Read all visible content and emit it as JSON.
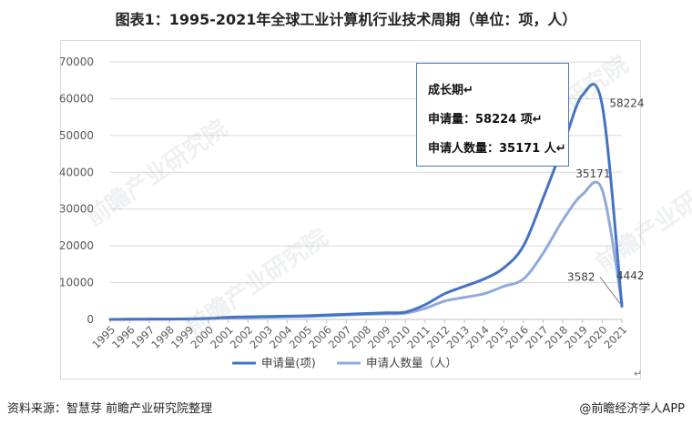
{
  "title": "图表1：1995-2021年全球工业计算机行业技术周期（单位：项，人）",
  "watermark_text": "前瞻产业研究院",
  "callout": {
    "line1": "成长期↵",
    "line2": "申请量：58224 项↵",
    "line3": "申请人数量：35171 人↵"
  },
  "footer": {
    "source": "资料来源：智慧芽 前瞻产业研究院整理",
    "brand": "@前瞻经济学人APP"
  },
  "para_mark": "↵",
  "colors": {
    "series1": "#4472c4",
    "series2": "#8faadc",
    "grid": "#d9d9d9",
    "axis_text": "#595959"
  },
  "chart_data": {
    "type": "line",
    "title": "图表1：1995-2021年全球工业计算机行业技术周期（单位：项，人）",
    "categories": [
      "1995",
      "1996",
      "1997",
      "1998",
      "1999",
      "2000",
      "2001",
      "2002",
      "2003",
      "2004",
      "2005",
      "2006",
      "2007",
      "2008",
      "2009",
      "2010",
      "2011",
      "2012",
      "2013",
      "2014",
      "2015",
      "2016",
      "2017",
      "2018",
      "2019",
      "2020",
      "2021"
    ],
    "series": [
      {
        "name": "申请量(项)",
        "values": [
          0,
          50,
          80,
          100,
          150,
          300,
          600,
          700,
          800,
          900,
          1000,
          1200,
          1400,
          1600,
          1800,
          2000,
          4000,
          7000,
          9000,
          11000,
          14000,
          20000,
          33000,
          47000,
          61000,
          58224,
          3582
        ]
      },
      {
        "name": "申请人数量（人）",
        "values": [
          0,
          40,
          60,
          80,
          100,
          200,
          400,
          500,
          600,
          700,
          800,
          1000,
          1200,
          1400,
          1500,
          1700,
          3000,
          5000,
          6000,
          7000,
          9000,
          11000,
          18000,
          27000,
          34000,
          35171,
          4442
        ]
      }
    ],
    "data_labels": [
      {
        "series": 0,
        "index": 25,
        "text": "58224"
      },
      {
        "series": 1,
        "index": 25,
        "text": "35171"
      },
      {
        "series": 0,
        "index": 26,
        "text": "3582"
      },
      {
        "series": 1,
        "index": 26,
        "text": "4442"
      }
    ],
    "ylim": [
      0,
      70000
    ],
    "yticks": [
      "0",
      "10000",
      "20000",
      "30000",
      "40000",
      "50000",
      "60000",
      "70000"
    ],
    "grid": true,
    "legend_position": "bottom"
  }
}
